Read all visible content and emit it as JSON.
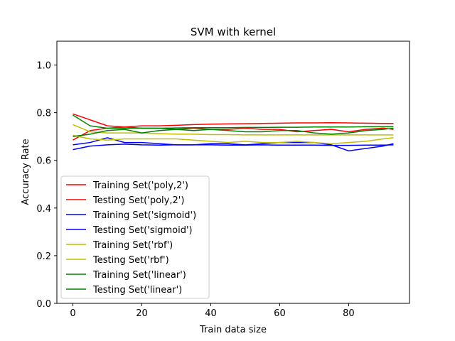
{
  "chart_data": {
    "type": "line",
    "title": "SVM with kernel",
    "xlabel": "Train data size",
    "ylabel": "Accuracy Rate",
    "xlim": [
      -4.65,
      97.65
    ],
    "ylim": [
      0,
      1.1
    ],
    "xticks": [
      0,
      20,
      40,
      60,
      80
    ],
    "yticks": [
      0.0,
      0.2,
      0.4,
      0.6,
      0.8,
      1.0
    ],
    "xtick_labels": [
      "0",
      "20",
      "40",
      "60",
      "80"
    ],
    "ytick_labels": [
      "0.0",
      "0.2",
      "0.4",
      "0.6",
      "0.8",
      "1.0"
    ],
    "grid": false,
    "legend_position": "lower-left",
    "x": [
      0,
      5,
      10,
      15,
      20,
      25,
      30,
      35,
      40,
      45,
      50,
      55,
      60,
      65,
      70,
      75,
      80,
      85,
      90,
      93
    ],
    "series": [
      {
        "name": "Training Set('poly,2')",
        "color": "#ff0000",
        "values": [
          0.685,
          0.725,
          0.735,
          0.74,
          0.745,
          0.745,
          0.747,
          0.75,
          0.752,
          0.753,
          0.754,
          0.755,
          0.756,
          0.757,
          0.757,
          0.758,
          0.757,
          0.756,
          0.755,
          0.755
        ]
      },
      {
        "name": "Testing Set('poly,2')",
        "color": "#ff0000",
        "values": [
          0.795,
          0.77,
          0.745,
          0.74,
          0.735,
          0.735,
          0.73,
          0.735,
          0.73,
          0.73,
          0.735,
          0.73,
          0.73,
          0.72,
          0.725,
          0.73,
          0.72,
          0.73,
          0.735,
          0.73
        ]
      },
      {
        "name": "Training Set('sigmoid')",
        "color": "#0000ff",
        "values": [
          0.645,
          0.66,
          0.665,
          0.668,
          0.665,
          0.664,
          0.665,
          0.665,
          0.665,
          0.664,
          0.664,
          0.665,
          0.664,
          0.664,
          0.664,
          0.663,
          0.663,
          0.664,
          0.664,
          0.665
        ]
      },
      {
        "name": "Testing Set('sigmoid')",
        "color": "#0000ff",
        "values": [
          0.665,
          0.675,
          0.695,
          0.675,
          0.675,
          0.67,
          0.665,
          0.665,
          0.67,
          0.67,
          0.665,
          0.67,
          0.675,
          0.675,
          0.675,
          0.665,
          0.64,
          0.65,
          0.66,
          0.67
        ]
      },
      {
        "name": "Training Set('rbf')",
        "color": "#bfbf00",
        "values": [
          0.75,
          0.72,
          0.715,
          0.715,
          0.715,
          0.712,
          0.71,
          0.71,
          0.708,
          0.708,
          0.707,
          0.707,
          0.707,
          0.707,
          0.707,
          0.707,
          0.707,
          0.707,
          0.707,
          0.707
        ]
      },
      {
        "name": "Testing Set('rbf')",
        "color": "#bfbf00",
        "values": [
          0.705,
          0.69,
          0.685,
          0.69,
          0.69,
          0.69,
          0.69,
          0.685,
          0.68,
          0.675,
          0.68,
          0.675,
          0.675,
          0.68,
          0.675,
          0.67,
          0.675,
          0.68,
          0.69,
          0.695
        ]
      },
      {
        "name": "Training Set('linear')",
        "color": "#008000",
        "values": [
          0.79,
          0.745,
          0.735,
          0.735,
          0.735,
          0.735,
          0.736,
          0.737,
          0.737,
          0.737,
          0.738,
          0.738,
          0.739,
          0.739,
          0.74,
          0.74,
          0.74,
          0.741,
          0.741,
          0.741
        ]
      },
      {
        "name": "Testing Set('linear')",
        "color": "#008000",
        "values": [
          0.7,
          0.71,
          0.725,
          0.73,
          0.715,
          0.725,
          0.73,
          0.725,
          0.73,
          0.725,
          0.72,
          0.72,
          0.725,
          0.725,
          0.715,
          0.71,
          0.715,
          0.725,
          0.73,
          0.735
        ]
      }
    ]
  }
}
